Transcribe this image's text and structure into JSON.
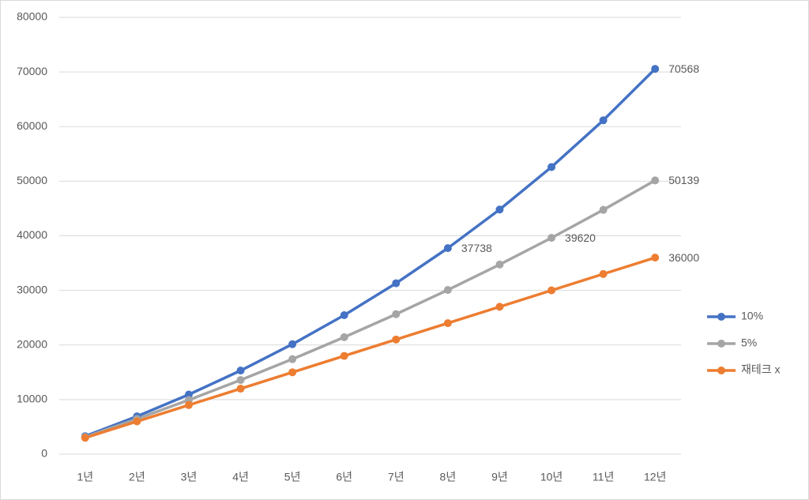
{
  "chart_data": {
    "type": "line",
    "categories": [
      "1년",
      "2년",
      "3년",
      "4년",
      "5년",
      "6년",
      "7년",
      "8년",
      "9년",
      "10년",
      "11년",
      "12년"
    ],
    "series": [
      {
        "name": "10%",
        "color": "#4472c4",
        "values": [
          3300,
          6930,
          10923,
          15315,
          20147,
          25462,
          31308,
          37738,
          44812,
          52594,
          61153,
          70568
        ],
        "value_labels": [
          null,
          null,
          null,
          null,
          null,
          null,
          null,
          "37738",
          null,
          null,
          null,
          "70568"
        ]
      },
      {
        "name": "5%",
        "color": "#a5a5a5",
        "values": [
          3150,
          6458,
          9930,
          13577,
          17406,
          21426,
          25647,
          30080,
          34734,
          39620,
          44751,
          50139
        ],
        "value_labels": [
          null,
          null,
          null,
          null,
          null,
          null,
          null,
          null,
          null,
          "39620",
          null,
          "50139"
        ]
      },
      {
        "name": "재테크 x",
        "color": "#ed7d31",
        "values": [
          3000,
          6000,
          9000,
          12000,
          15000,
          18000,
          21000,
          24000,
          27000,
          30000,
          33000,
          36000
        ],
        "value_labels": [
          null,
          null,
          null,
          null,
          null,
          null,
          null,
          null,
          null,
          null,
          null,
          "36000"
        ]
      }
    ],
    "ylim": [
      0,
      80000
    ],
    "yticks": [
      0,
      10000,
      20000,
      30000,
      40000,
      50000,
      60000,
      70000,
      80000
    ],
    "grid": true,
    "legend": "right"
  }
}
